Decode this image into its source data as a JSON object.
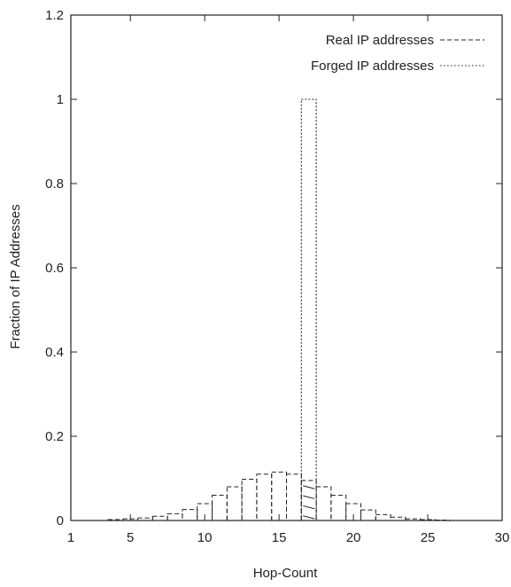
{
  "chart_data": {
    "type": "bar",
    "xlabel": "Hop-Count",
    "ylabel": "Fraction of IP Addresses",
    "xlim": [
      1,
      30
    ],
    "ylim": [
      0,
      1.2
    ],
    "x_ticks": [
      1,
      5,
      10,
      15,
      20,
      25,
      30
    ],
    "y_ticks": [
      0,
      0.2,
      0.4,
      0.6,
      0.8,
      1,
      1.2
    ],
    "y_tick_labels": [
      "0",
      "0.2",
      "0.4",
      "0.6",
      "0.8",
      "1",
      "1.2"
    ],
    "legend_position": "top-right",
    "grid": false,
    "series": [
      {
        "name": "Real IP addresses",
        "style": "dashed",
        "x": [
          4,
          5,
          6,
          7,
          8,
          9,
          10,
          11,
          12,
          13,
          14,
          15,
          16,
          17,
          18,
          19,
          20,
          21,
          22,
          23,
          24,
          25,
          26
        ],
        "values": [
          0.002,
          0.004,
          0.006,
          0.01,
          0.016,
          0.026,
          0.04,
          0.06,
          0.08,
          0.098,
          0.11,
          0.115,
          0.11,
          0.095,
          0.08,
          0.06,
          0.04,
          0.025,
          0.014,
          0.008,
          0.004,
          0.002,
          0.001
        ]
      },
      {
        "name": "Forged IP addresses",
        "style": "dotted",
        "x": [
          17
        ],
        "values": [
          1.0
        ]
      }
    ]
  }
}
